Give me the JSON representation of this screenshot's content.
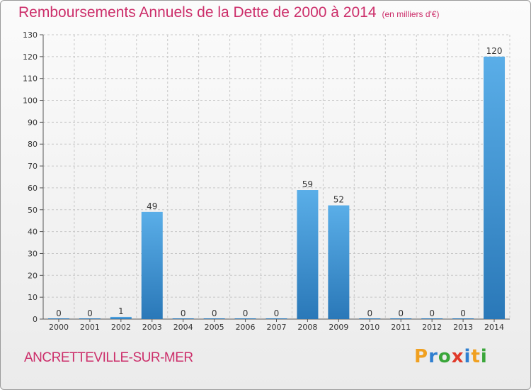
{
  "header": {
    "title": "Remboursements Annuels de la Dette de 2000 à 2014",
    "unit": "(en milliers d'€)"
  },
  "footer": {
    "place": "ANCRETTEVILLE-SUR-MER",
    "brand_letters": [
      "P",
      "r",
      "o",
      "x",
      "i",
      "t",
      "i"
    ],
    "brand_colors": [
      "#f0a020",
      "#2f7fd0",
      "#3aa63a",
      "#e03a2a",
      "#2f7fd0",
      "#f0a020",
      "#3aa63a"
    ]
  },
  "colors": {
    "title": "#cc2e6a",
    "bar_top": "#5aaee8",
    "bar_bottom": "#2a78b8"
  },
  "chart_data": {
    "type": "bar",
    "categories": [
      "2000",
      "2001",
      "2002",
      "2003",
      "2004",
      "2005",
      "2006",
      "2007",
      "2008",
      "2009",
      "2010",
      "2011",
      "2012",
      "2013",
      "2014"
    ],
    "values": [
      0,
      0,
      1,
      49,
      0,
      0,
      0,
      0,
      59,
      52,
      0,
      0,
      0,
      0,
      120
    ],
    "ylim": [
      0,
      130
    ],
    "yticks": [
      0,
      10,
      20,
      30,
      40,
      50,
      60,
      70,
      80,
      90,
      100,
      110,
      120,
      130
    ],
    "grid": true
  }
}
